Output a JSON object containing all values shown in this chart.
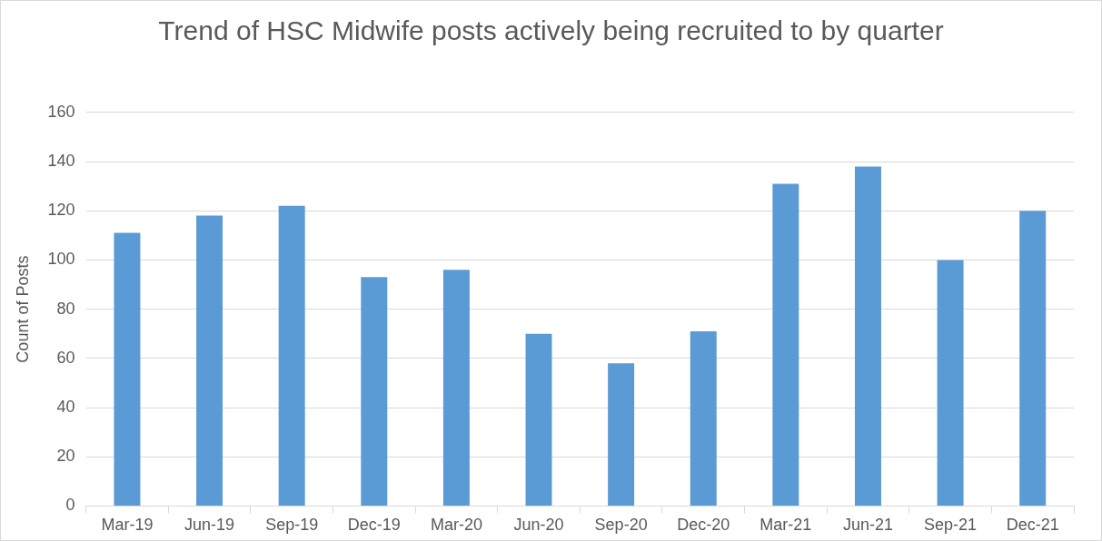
{
  "chart_data": {
    "type": "bar",
    "title": "Trend of HSC Midwife posts actively being recruited to by quarter",
    "ylabel": "Count of Posts",
    "categories": [
      "Mar-19",
      "Jun-19",
      "Sep-19",
      "Dec-19",
      "Mar-20",
      "Jun-20",
      "Sep-20",
      "Dec-20",
      "Mar-21",
      "Jun-21",
      "Sep-21",
      "Dec-21"
    ],
    "values": [
      111,
      118,
      122,
      93,
      96,
      70,
      58,
      71,
      131,
      138,
      100,
      120
    ],
    "color": "#5b9bd5",
    "ylim": [
      0,
      160
    ],
    "yticks": [
      0,
      20,
      40,
      60,
      80,
      100,
      120,
      140,
      160
    ],
    "grid": "y",
    "legend": false
  }
}
